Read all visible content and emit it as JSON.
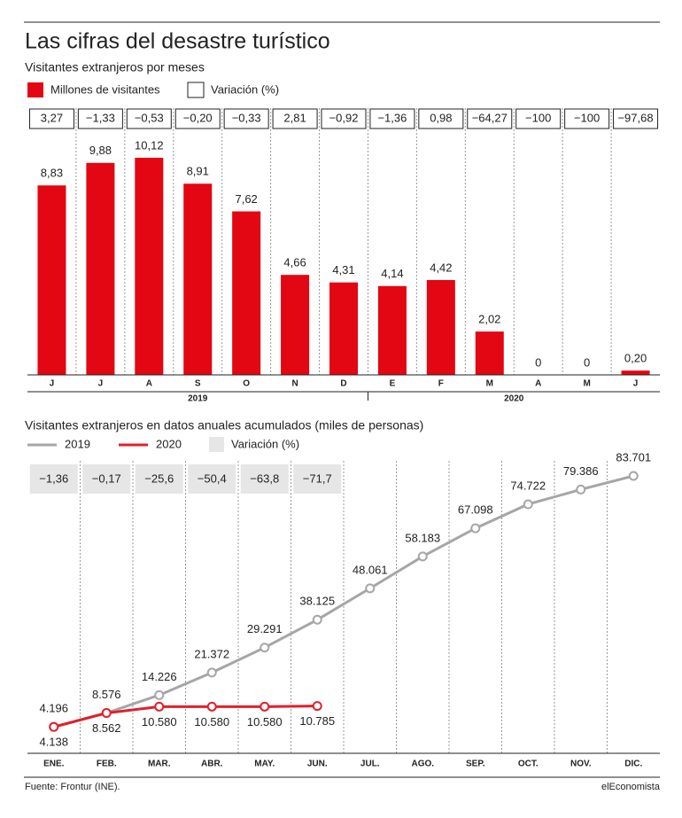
{
  "title": "Las cifras del desastre turístico",
  "source": "Fuente: Frontur (INE).",
  "brand": "elEconomista",
  "chart_data": [
    {
      "type": "bar",
      "subtitle": "Visitantes extranjeros por meses",
      "categories": [
        "J",
        "J",
        "A",
        "S",
        "O",
        "N",
        "D",
        "E",
        "F",
        "M",
        "A",
        "M",
        "J"
      ],
      "groups": [
        {
          "label": "2019",
          "count": 7
        },
        {
          "label": "2020",
          "count": 6
        }
      ],
      "series": [
        {
          "name": "Millones de visitantes",
          "color": "#e30613",
          "values": [
            8.83,
            9.88,
            10.12,
            8.91,
            7.62,
            4.66,
            4.31,
            4.14,
            4.42,
            2.02,
            0,
            0,
            0.2
          ],
          "value_labels": [
            "8,83",
            "9,88",
            "10,12",
            "8,91",
            "7,62",
            "4,66",
            "4,31",
            "4,14",
            "4,42",
            "2,02",
            "0",
            "0",
            "0,20"
          ]
        }
      ],
      "variation": {
        "name": "Variación (%)",
        "values": [
          3.27,
          -1.33,
          -0.53,
          -0.2,
          -0.33,
          2.81,
          -0.92,
          -1.36,
          0.98,
          -64.27,
          -100,
          -100,
          -97.68
        ],
        "value_labels": [
          "3,27",
          "−1,33",
          "−0,53",
          "−0,20",
          "−0,33",
          "2,81",
          "−0,92",
          "−1,36",
          "0,98",
          "−64,27",
          "−100",
          "−100",
          "−97,68"
        ]
      }
    },
    {
      "type": "line",
      "subtitle": "Visitantes extranjeros en datos anuales acumulados (miles de personas)",
      "categories": [
        "ENE.",
        "FEB.",
        "MAR.",
        "ABR.",
        "MAY.",
        "JUN.",
        "JUL.",
        "AGO.",
        "SEP.",
        "OCT.",
        "NOV.",
        "DIC."
      ],
      "series": [
        {
          "name": "2019",
          "color": "#a6a6a6",
          "values": [
            4196,
            8576,
            14226,
            21372,
            29291,
            38125,
            48061,
            58183,
            67098,
            74722,
            79386,
            83701
          ],
          "value_labels": [
            "4.196",
            "8.576",
            "14.226",
            "21.372",
            "29.291",
            "38.125",
            "48.061",
            "58.183",
            "67.098",
            "74.722",
            "79.386",
            "83.701"
          ]
        },
        {
          "name": "2020",
          "color": "#e0202a",
          "values": [
            4138,
            8562,
            10580,
            10580,
            10580,
            10785,
            null,
            null,
            null,
            null,
            null,
            null
          ],
          "value_labels": [
            "4.138",
            "8.562",
            "10.580",
            "10.580",
            "10.580",
            "10.785",
            null,
            null,
            null,
            null,
            null,
            null
          ]
        }
      ],
      "variation": {
        "name": "Variación (%)",
        "values": [
          -1.36,
          -0.17,
          -25.6,
          -50.4,
          -63.8,
          -71.7,
          null,
          null,
          null,
          null,
          null,
          null
        ],
        "value_labels": [
          "−1,36",
          "−0,17",
          "−25,6",
          "−50,4",
          "−63,8",
          "−71,7",
          null,
          null,
          null,
          null,
          null,
          null
        ]
      }
    }
  ]
}
